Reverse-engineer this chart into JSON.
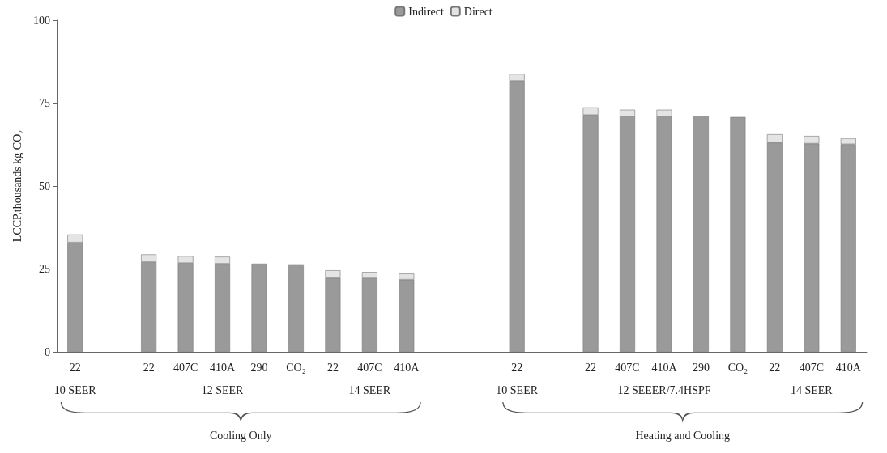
{
  "chart_data": {
    "type": "bar",
    "stacked": true,
    "ylabel": "LCCP,thousands kg CO₂",
    "categories": [
      "22",
      null,
      "22",
      "407C",
      "410A",
      "290",
      "CO₂",
      "22",
      "407C",
      "410A",
      null,
      null,
      "22",
      null,
      "22",
      "407C",
      "410A",
      "290",
      "CO₂",
      "22",
      "407C",
      "410A"
    ],
    "series": [
      {
        "name": "Indirect",
        "color": "#9a9a9a",
        "values": [
          33,
          null,
          27.1,
          26.8,
          26.6,
          26.6,
          26.4,
          22.3,
          22.2,
          21.8,
          null,
          null,
          81.7,
          null,
          71.4,
          71,
          71,
          71,
          70.8,
          63.1,
          62.8,
          62.6
        ]
      },
      {
        "name": "Direct",
        "color": "#e4e4e4",
        "values": [
          2.4,
          null,
          2.3,
          2.1,
          2.1,
          null,
          null,
          2.3,
          1.9,
          1.8,
          null,
          null,
          2.1,
          null,
          2.3,
          2,
          2,
          null,
          null,
          2.5,
          2.3,
          1.8
        ]
      }
    ],
    "ylim": [
      0,
      100
    ],
    "yticks": [
      0,
      25,
      50,
      75,
      100
    ],
    "grid": false,
    "legend": "top",
    "annotations": [
      "10 SEER",
      "12 SEER",
      "14 SEER",
      "10 SEER",
      "12 SEEER/7.4HSPF",
      "14 SEER",
      "Cooling Only",
      "Heating and Cooling"
    ]
  }
}
